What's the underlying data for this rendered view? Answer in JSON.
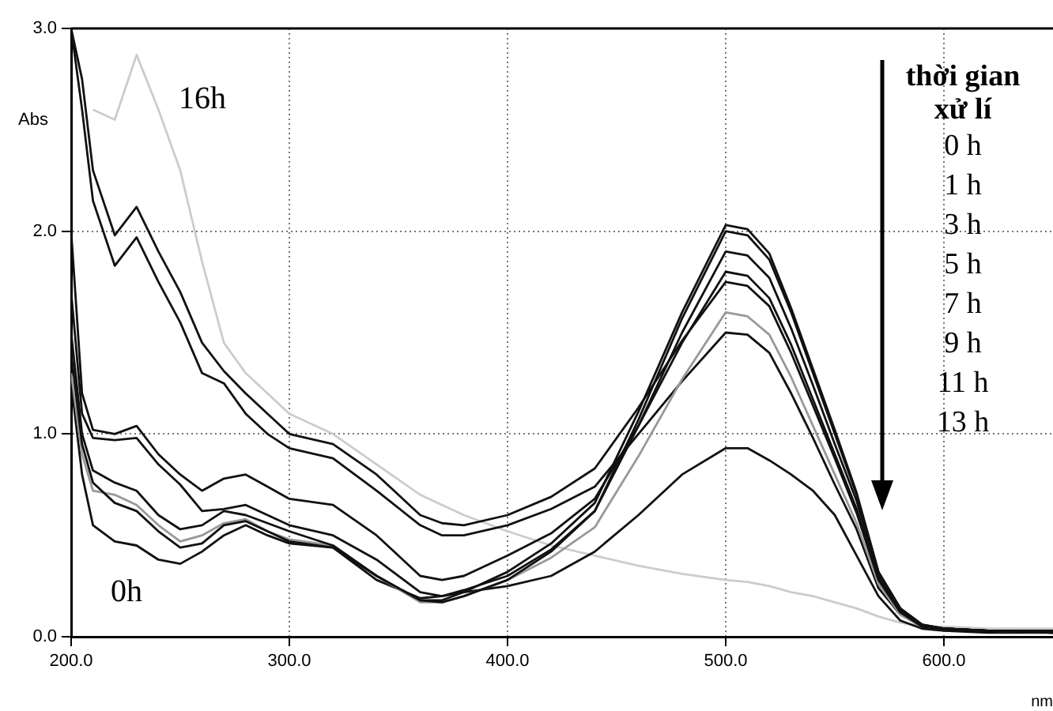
{
  "chart_data": {
    "type": "line",
    "xlabel": "nm",
    "ylabel": "Abs",
    "x": [
      200,
      205,
      210,
      220,
      230,
      240,
      250,
      260,
      270,
      280,
      290,
      300,
      320,
      340,
      360,
      370,
      380,
      400,
      420,
      440,
      460,
      480,
      500,
      510,
      520,
      530,
      540,
      550,
      560,
      570,
      580,
      590,
      600,
      620,
      650
    ],
    "series": [
      {
        "color": "#111111",
        "values": [
          1.5,
          1.0,
          0.82,
          0.76,
          0.72,
          0.6,
          0.53,
          0.55,
          0.62,
          0.6,
          0.56,
          0.52,
          0.45,
          0.3,
          0.18,
          0.18,
          0.22,
          0.32,
          0.46,
          0.66,
          1.11,
          1.6,
          2.03,
          2.01,
          1.89,
          1.62,
          1.32,
          1.02,
          0.71,
          0.32,
          0.14,
          0.06,
          0.04,
          0.03,
          0.03
        ]
      },
      {
        "color": "#111111",
        "values": [
          1.4,
          0.95,
          0.76,
          0.66,
          0.62,
          0.52,
          0.44,
          0.46,
          0.55,
          0.57,
          0.52,
          0.47,
          0.44,
          0.3,
          0.18,
          0.17,
          0.2,
          0.28,
          0.42,
          0.62,
          1.07,
          1.57,
          2.0,
          1.98,
          1.86,
          1.6,
          1.3,
          1.0,
          0.7,
          0.32,
          0.14,
          0.06,
          0.04,
          0.03,
          0.02
        ]
      },
      {
        "color": "#111111",
        "values": [
          1.7,
          1.1,
          0.98,
          0.97,
          0.98,
          0.85,
          0.75,
          0.62,
          0.63,
          0.65,
          0.6,
          0.55,
          0.5,
          0.38,
          0.22,
          0.2,
          0.23,
          0.3,
          0.43,
          0.62,
          1.04,
          1.5,
          1.9,
          1.88,
          1.77,
          1.52,
          1.24,
          0.95,
          0.67,
          0.3,
          0.13,
          0.05,
          0.04,
          0.03,
          0.02
        ]
      },
      {
        "color": "#111111",
        "values": [
          2.0,
          1.2,
          1.02,
          1.0,
          1.04,
          0.9,
          0.8,
          0.72,
          0.78,
          0.8,
          0.74,
          0.68,
          0.65,
          0.5,
          0.3,
          0.28,
          0.3,
          0.4,
          0.51,
          0.68,
          1.04,
          1.45,
          1.8,
          1.78,
          1.67,
          1.44,
          1.17,
          0.9,
          0.63,
          0.29,
          0.13,
          0.05,
          0.04,
          0.03,
          0.03
        ]
      },
      {
        "color": "#111111",
        "values": [
          3.0,
          2.75,
          2.3,
          1.98,
          2.12,
          1.9,
          1.7,
          1.45,
          1.31,
          1.2,
          1.1,
          1.0,
          0.95,
          0.8,
          0.6,
          0.56,
          0.55,
          0.6,
          0.69,
          0.83,
          1.13,
          1.46,
          1.75,
          1.73,
          1.63,
          1.4,
          1.14,
          0.88,
          0.61,
          0.28,
          0.12,
          0.05,
          0.04,
          0.03,
          0.03
        ]
      },
      {
        "color": "#999999",
        "values": [
          1.3,
          0.9,
          0.72,
          0.7,
          0.65,
          0.55,
          0.47,
          0.5,
          0.56,
          0.58,
          0.52,
          0.48,
          0.45,
          0.3,
          0.17,
          0.17,
          0.2,
          0.28,
          0.39,
          0.54,
          0.89,
          1.27,
          1.6,
          1.58,
          1.49,
          1.28,
          1.04,
          0.8,
          0.56,
          0.26,
          0.11,
          0.05,
          0.04,
          0.03,
          0.02
        ]
      },
      {
        "color": "#111111",
        "values": [
          3.0,
          2.6,
          2.15,
          1.83,
          1.97,
          1.75,
          1.55,
          1.3,
          1.25,
          1.1,
          1.0,
          0.93,
          0.88,
          0.72,
          0.55,
          0.5,
          0.5,
          0.55,
          0.63,
          0.74,
          1.0,
          1.26,
          1.5,
          1.49,
          1.4,
          1.2,
          0.98,
          0.75,
          0.53,
          0.24,
          0.11,
          0.05,
          0.04,
          0.03,
          0.02
        ]
      },
      {
        "color": "#111111",
        "values": [
          1.25,
          0.8,
          0.55,
          0.47,
          0.45,
          0.38,
          0.36,
          0.42,
          0.5,
          0.55,
          0.5,
          0.46,
          0.44,
          0.28,
          0.19,
          0.2,
          0.22,
          0.25,
          0.3,
          0.42,
          0.6,
          0.8,
          0.93,
          0.93,
          0.87,
          0.8,
          0.72,
          0.6,
          0.4,
          0.2,
          0.08,
          0.04,
          0.03,
          0.02,
          0.02
        ]
      },
      {
        "color": "#cccccc",
        "values": [
          null,
          null,
          2.6,
          2.55,
          2.87,
          2.6,
          2.3,
          1.85,
          1.45,
          1.3,
          1.2,
          1.1,
          1.0,
          0.85,
          0.7,
          0.65,
          0.6,
          0.52,
          0.45,
          0.4,
          0.35,
          0.31,
          0.28,
          0.27,
          0.25,
          0.22,
          0.2,
          0.17,
          0.14,
          0.1,
          0.07,
          0.05,
          0.05,
          0.04,
          0.04
        ]
      }
    ],
    "xlim": [
      200,
      650
    ],
    "xticks": [
      {
        "value": 200,
        "label": "200.0"
      },
      {
        "value": 300,
        "label": "300.0"
      },
      {
        "value": 400,
        "label": "400.0"
      },
      {
        "value": 500,
        "label": "500.0"
      },
      {
        "value": 600,
        "label": "600.0"
      }
    ],
    "ylim": [
      0,
      3
    ],
    "yticks": [
      {
        "value": 0,
        "label": "0.0"
      },
      {
        "value": 1,
        "label": "1.0"
      },
      {
        "value": 2,
        "label": "2.0"
      },
      {
        "value": 3,
        "label": "3.0"
      }
    ],
    "grid": true,
    "legend": false,
    "marker": "none",
    "line_style": "solid",
    "annotations": [
      "16h",
      "0h",
      "thời gian xử lí",
      "0 h",
      "1 h",
      "3 h",
      "5 h",
      "7 h",
      "9 h",
      "11 h",
      "13 h"
    ]
  }
}
